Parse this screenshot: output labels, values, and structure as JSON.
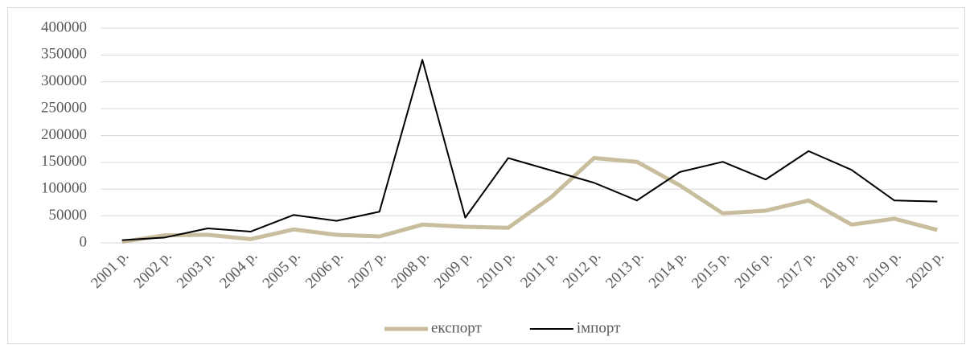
{
  "chart_data": {
    "type": "line",
    "categories": [
      "2001 р.",
      "2002 р.",
      "2003 р.",
      "2004 р.",
      "2005 р.",
      "2006 р.",
      "2007 р.",
      "2008 р.",
      "2009 р.",
      "2010 р.",
      "2011 р.",
      "2012 р.",
      "2013 р.",
      "2014 р.",
      "2015 р.",
      "2016 р.",
      "2017 р.",
      "2018 р.",
      "2019 р.",
      "2020 р."
    ],
    "series": [
      {
        "name": "експорт",
        "color": "#c8bd9c",
        "values": [
          2000,
          14000,
          15000,
          7000,
          25000,
          15000,
          12000,
          34000,
          30000,
          28000,
          85000,
          158000,
          151000,
          107000,
          55000,
          60000,
          79000,
          34000,
          45000,
          24000
        ]
      },
      {
        "name": "імпорт",
        "color": "#000000",
        "values": [
          5000,
          10000,
          27000,
          21000,
          52000,
          41000,
          58000,
          341000,
          47000,
          158000,
          135000,
          112000,
          79000,
          132000,
          151000,
          118000,
          171000,
          136000,
          79000,
          77000
        ]
      }
    ],
    "ylim": [
      0,
      400000
    ],
    "yticks": [
      0,
      50000,
      100000,
      150000,
      200000,
      250000,
      300000,
      350000,
      400000
    ],
    "grid": true,
    "legend": "bottom"
  }
}
